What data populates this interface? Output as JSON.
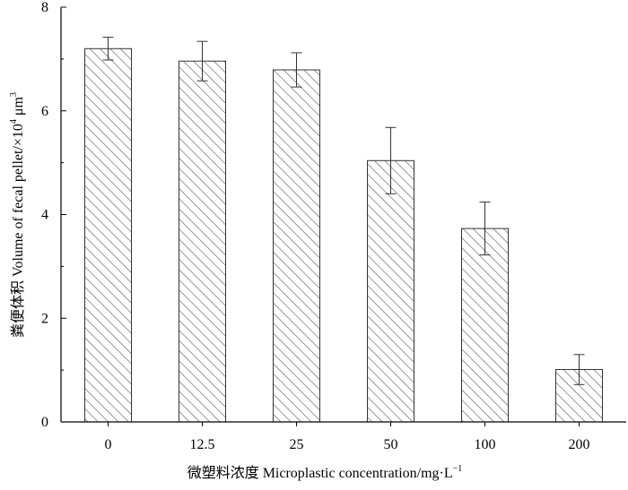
{
  "chart_data": {
    "type": "bar",
    "categories": [
      "0",
      "12.5",
      "25",
      "50",
      "100",
      "200"
    ],
    "values": [
      7.2,
      6.96,
      6.79,
      5.04,
      3.73,
      1.01
    ],
    "errors": [
      0.22,
      0.38,
      0.33,
      0.64,
      0.51,
      0.29
    ],
    "xlabel": "微塑料浓度 Microplastic concentration/mg·L",
    "xlabel_sup": "−1",
    "ylabel": "粪便体积 Volume of fecal pellet/×10",
    "ylabel_sup1": "4",
    "ylabel_mid": " μm",
    "ylabel_sup2": "3",
    "ylim": [
      0,
      8
    ],
    "yticks": [
      "0",
      "2",
      "4",
      "6",
      "8"
    ],
    "bar_fill": "hatched",
    "bar_color": "#555555",
    "grid": false
  }
}
